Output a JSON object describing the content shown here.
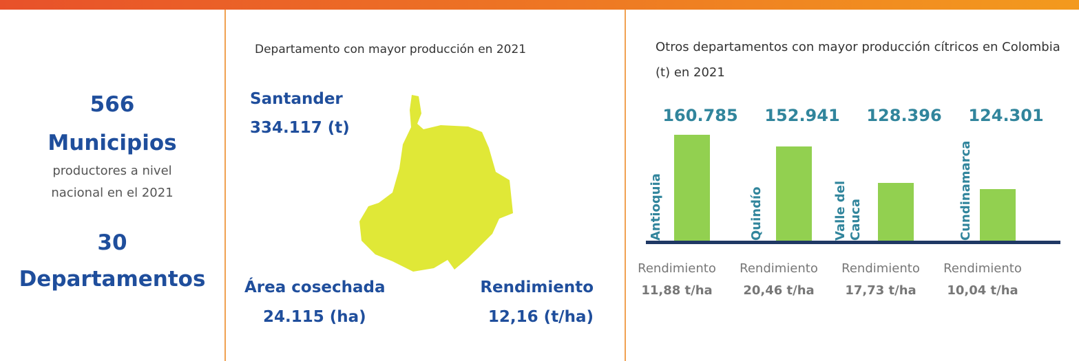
{
  "summary": {
    "municipios_count": "566",
    "municipios_label": "Municipios",
    "municipios_note": "productores a nivel nacional en el 2021",
    "departamentos_count": "30",
    "departamentos_label": "Departamentos"
  },
  "top_department": {
    "heading": "Departamento con mayor producción en 2021",
    "name": "Santander",
    "production": "334.117 (t)",
    "area_label": "Área cosechada",
    "area_value": "24.115 (ha)",
    "yield_label": "Rendimiento",
    "yield_value": "12,16 (t/ha)"
  },
  "chart_data": {
    "type": "bar",
    "title": "Otros departamentos con mayor producción cítricos en Colombia (t) en 2021",
    "categories": [
      "Antioquia",
      "Quindío",
      "Valle del Cauca",
      "Cundinamarca"
    ],
    "values": [
      160785,
      152941,
      128396,
      124301
    ],
    "value_labels": [
      "160.785",
      "152.941",
      "128.396",
      "124.301"
    ],
    "color": "#92d050",
    "ylim": [
      90000,
      170000
    ],
    "yields": [
      {
        "label": "Rendimiento",
        "value": "11,88 t/ha"
      },
      {
        "label": "Rendimiento",
        "value": "20,46 t/ha"
      },
      {
        "label": "Rendimiento",
        "value": "17,73 t/ha"
      },
      {
        "label": "Rendimiento",
        "value": "10,04 t/ha"
      }
    ]
  }
}
